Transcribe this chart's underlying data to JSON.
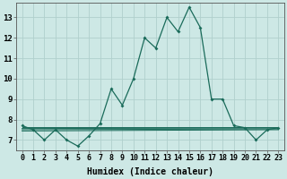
{
  "xlabel": "Humidex (Indice chaleur)",
  "background_color": "#cde8e5",
  "grid_color": "#b0d0cc",
  "line_color": "#1a6b5a",
  "xlim": [
    -0.5,
    23.5
  ],
  "ylim": [
    6.5,
    13.7
  ],
  "yticks": [
    7,
    8,
    9,
    10,
    11,
    12,
    13
  ],
  "xticks": [
    0,
    1,
    2,
    3,
    4,
    5,
    6,
    7,
    8,
    9,
    10,
    11,
    12,
    13,
    14,
    15,
    16,
    17,
    18,
    19,
    20,
    21,
    22,
    23
  ],
  "main_x": [
    0,
    1,
    2,
    3,
    4,
    5,
    6,
    7,
    8,
    9,
    10,
    11,
    12,
    13,
    14,
    15,
    16,
    17,
    18,
    19,
    20,
    21,
    22,
    23
  ],
  "main_y": [
    7.7,
    7.5,
    7.0,
    7.5,
    7.0,
    6.7,
    7.2,
    7.8,
    9.5,
    8.7,
    10.0,
    12.0,
    11.5,
    13.0,
    12.3,
    13.5,
    12.5,
    9.0,
    9.0,
    7.7,
    7.6,
    7.0,
    7.5,
    7.6
  ],
  "flat_lines": [
    {
      "x": [
        0,
        23
      ],
      "y": [
        7.62,
        7.62
      ]
    },
    {
      "x": [
        0,
        23
      ],
      "y": [
        7.56,
        7.58
      ]
    },
    {
      "x": [
        0,
        23
      ],
      "y": [
        7.5,
        7.54
      ]
    },
    {
      "x": [
        0,
        23
      ],
      "y": [
        7.44,
        7.5
      ]
    }
  ],
  "tick_fontsize": 6,
  "xlabel_fontsize": 7
}
